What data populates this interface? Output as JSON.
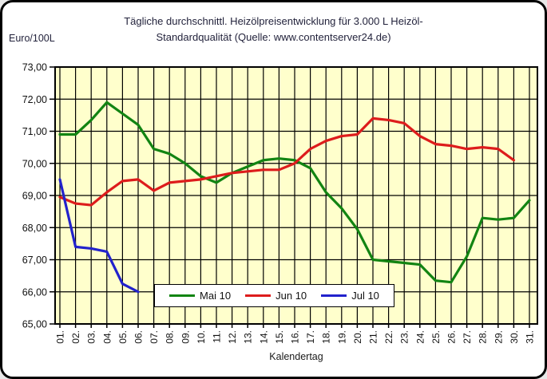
{
  "window": {
    "background": "#ffffff",
    "border_color": "#000000"
  },
  "header": {
    "title_line1": "Tägliche durchschnittl. Heizölpreisentwicklung für 3.000 L Heizöl-",
    "title_line2": "Standardqualität (Quelle: www.contentserver24.de)",
    "y_axis_unit": "Euro/100L"
  },
  "chart_data": {
    "type": "line",
    "title": "Tägliche durchschnittl. Heizölpreisentwicklung für 3.000 L Heizöl-Standardqualität (Quelle: www.contentserver24.de)",
    "xlabel": "Kalendertag",
    "ylabel": "Euro/100L",
    "ylim": [
      65,
      73
    ],
    "y_tick_step": 1,
    "y_tick_labels": [
      "73,00",
      "72,00",
      "71,00",
      "70,00",
      "69,00",
      "68,00",
      "67,00",
      "66,00",
      "65,00"
    ],
    "x_tick_labels": [
      "01.",
      "02.",
      "03.",
      "04.",
      "05.",
      "06.",
      "07.",
      "08.",
      "09.",
      "10.",
      "11.",
      "12.",
      "13.",
      "14.",
      "15.",
      "16.",
      "17.",
      "18.",
      "19.",
      "20.",
      "21.",
      "22.",
      "23.",
      "24.",
      "25.",
      "26.",
      "27.",
      "28.",
      "29.",
      "30.",
      "31."
    ],
    "grid": true,
    "grid_color": "#000000",
    "plot_bg": "#ffffcc",
    "legend_position": "bottom-center",
    "series": [
      {
        "name": "Mai 10",
        "color": "#128412",
        "values": [
          70.9,
          70.9,
          71.35,
          71.9,
          71.55,
          71.2,
          70.45,
          70.3,
          70.0,
          69.6,
          69.4,
          69.7,
          69.9,
          70.1,
          70.15,
          70.1,
          69.85,
          69.1,
          68.6,
          67.95,
          67.0,
          66.95,
          66.9,
          66.85,
          66.35,
          66.3,
          67.1,
          68.3,
          68.25,
          68.3,
          68.85
        ]
      },
      {
        "name": "Jun 10",
        "color": "#dd1c1c",
        "values": [
          68.95,
          68.75,
          68.7,
          69.1,
          69.45,
          69.5,
          69.15,
          69.4,
          69.45,
          69.5,
          69.6,
          69.7,
          69.75,
          69.8,
          69.8,
          70.0,
          70.45,
          70.7,
          70.85,
          70.9,
          71.4,
          71.35,
          71.25,
          70.85,
          70.6,
          70.55,
          70.45,
          70.5,
          70.45,
          70.1
        ]
      },
      {
        "name": "Jul 10",
        "color": "#2222cc",
        "values": [
          69.5,
          67.4,
          67.35,
          67.25,
          66.25,
          66.0
        ]
      }
    ]
  }
}
